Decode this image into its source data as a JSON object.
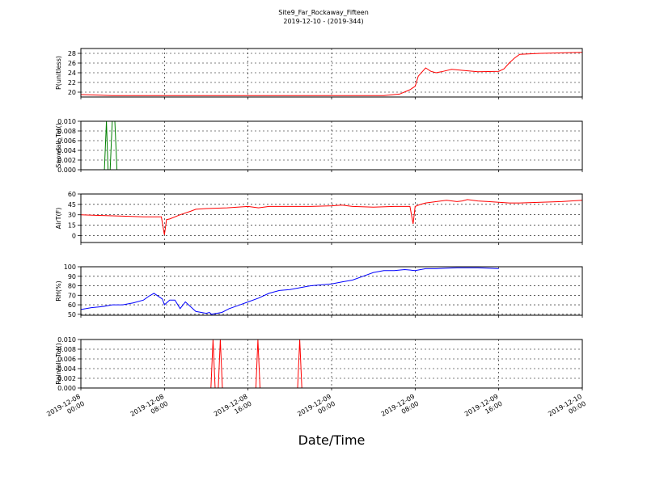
{
  "chart_data": {
    "type": "line",
    "title": "Site9_Far_Rockaway_Fifteen",
    "subtitle": "2019-12-10 - (2019-344)",
    "xlabel": "Date/Time",
    "x_tick_labels": [
      [
        "2019-12-08",
        "00:00"
      ],
      [
        "2019-12-08",
        "08:00"
      ],
      [
        "2019-12-08",
        "16:00"
      ],
      [
        "2019-12-09",
        "00:00"
      ],
      [
        "2019-12-09",
        "08:00"
      ],
      [
        "2019-12-09",
        "16:00"
      ],
      [
        "2019-12-10",
        "00:00"
      ]
    ],
    "xlim_hours": [
      0,
      48
    ],
    "grid": true,
    "panels": [
      {
        "ylabel": "P(unitless)",
        "ylim": [
          19,
          29
        ],
        "yticks": [
          20,
          22,
          24,
          26,
          28
        ],
        "color": "#ff0000",
        "x_hours": [
          0,
          3,
          6,
          10,
          14,
          18,
          22,
          26,
          29,
          30.5,
          31.5,
          32,
          32.3,
          33,
          33.5,
          34,
          34.5,
          35.5,
          36.5,
          38,
          40,
          40.5,
          41,
          41.5,
          42,
          43,
          44,
          46,
          48
        ],
        "values": [
          19.5,
          19.3,
          19.3,
          19.3,
          19.3,
          19.3,
          19.3,
          19.3,
          19.3,
          19.6,
          20.5,
          21.2,
          23.3,
          25.0,
          24.3,
          24.0,
          24.2,
          24.7,
          24.5,
          24.2,
          24.3,
          24.8,
          26.0,
          27.0,
          27.8,
          27.9,
          28.0,
          28.1,
          28.2
        ]
      },
      {
        "ylabel": "Snowfall_Tot()",
        "ylim": [
          0,
          0.01
        ],
        "yticks": [
          0.0,
          0.002,
          0.004,
          0.006,
          0.008,
          0.01
        ],
        "ytick_labels": [
          "0.000",
          "0.002",
          "0.004",
          "0.006",
          "0.008",
          "0.010"
        ],
        "color": "#008000",
        "x_hours": [
          0,
          2.25,
          2.45,
          2.6,
          2.8,
          3.0,
          3.25,
          3.45,
          48
        ],
        "values": [
          0,
          0,
          0.01,
          0,
          0,
          0.01,
          0.01,
          0,
          0
        ]
      },
      {
        "ylabel": "AirT(F)",
        "ylim": [
          -10,
          60
        ],
        "yticks": [
          0,
          15,
          30,
          45,
          60
        ],
        "color": "#ff0000",
        "x_hours": [
          0,
          2,
          4,
          6,
          7.7,
          8,
          8.2,
          8.5,
          9.5,
          10.5,
          11,
          12,
          14,
          16,
          17,
          18,
          20,
          22,
          24,
          25,
          26,
          28,
          30,
          31,
          31.5,
          31.8,
          32,
          32.5,
          33,
          35,
          36,
          36.5,
          37,
          38,
          39,
          40,
          41,
          42,
          44,
          46,
          48
        ],
        "values": [
          30,
          29,
          28,
          27,
          27,
          1,
          23,
          24,
          30,
          35,
          38,
          39,
          40,
          42,
          40,
          42,
          42,
          42,
          43,
          44,
          42,
          41,
          42,
          42,
          42,
          17,
          42,
          45,
          47,
          51,
          49,
          50,
          52,
          50,
          49,
          48,
          47,
          47,
          48,
          49,
          51
        ]
      },
      {
        "ylabel": "RH(%)",
        "ylim": [
          49,
          100
        ],
        "yticks": [
          50,
          60,
          70,
          80,
          90,
          100
        ],
        "color": "#0000ff",
        "x_hours": [
          0,
          1,
          2,
          3,
          4,
          5,
          6,
          6.5,
          7,
          7.8,
          8,
          8.5,
          9,
          9.5,
          10,
          11,
          12,
          12.3,
          12.5,
          13.5,
          14.2,
          15,
          16,
          17,
          18,
          19,
          20,
          22,
          24,
          25,
          26,
          27,
          28,
          29,
          30,
          31,
          32,
          33,
          34,
          36,
          38,
          40
        ],
        "values": [
          55,
          57,
          58,
          60,
          60,
          62,
          65,
          69,
          72,
          66,
          60,
          65,
          65,
          56,
          63,
          53,
          51,
          52,
          50,
          52,
          56,
          59,
          63,
          67,
          72,
          75,
          76,
          80,
          82,
          84,
          86,
          90,
          94,
          96,
          96,
          97,
          96,
          98,
          98,
          99,
          99,
          98
        ]
      },
      {
        "ylabel": "Rainfall_Tot()",
        "ylim": [
          0,
          0.01
        ],
        "yticks": [
          0.0,
          0.002,
          0.004,
          0.006,
          0.008,
          0.01
        ],
        "ytick_labels": [
          "0.000",
          "0.002",
          "0.004",
          "0.006",
          "0.008",
          "0.010"
        ],
        "color": "#ff0000",
        "x_hours": [
          0,
          12.45,
          12.65,
          12.85,
          13.15,
          13.35,
          13.55,
          16.75,
          16.95,
          17.15,
          20.75,
          20.95,
          21.15,
          48
        ],
        "values": [
          0,
          0,
          0.01,
          0,
          0,
          0.01,
          0,
          0,
          0.01,
          0,
          0,
          0.01,
          0,
          0
        ]
      }
    ]
  }
}
